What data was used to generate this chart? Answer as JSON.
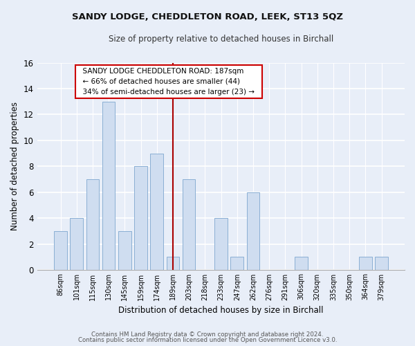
{
  "title": "SANDY LODGE, CHEDDLETON ROAD, LEEK, ST13 5QZ",
  "subtitle": "Size of property relative to detached houses in Birchall",
  "xlabel": "Distribution of detached houses by size in Birchall",
  "ylabel": "Number of detached properties",
  "footnote1": "Contains HM Land Registry data © Crown copyright and database right 2024.",
  "footnote2": "Contains public sector information licensed under the Open Government Licence v3.0.",
  "bar_labels": [
    "86sqm",
    "101sqm",
    "115sqm",
    "130sqm",
    "145sqm",
    "159sqm",
    "174sqm",
    "189sqm",
    "203sqm",
    "218sqm",
    "233sqm",
    "247sqm",
    "262sqm",
    "276sqm",
    "291sqm",
    "306sqm",
    "320sqm",
    "335sqm",
    "350sqm",
    "364sqm",
    "379sqm"
  ],
  "bar_values": [
    3,
    4,
    7,
    13,
    3,
    8,
    9,
    1,
    7,
    0,
    4,
    1,
    6,
    0,
    0,
    1,
    0,
    0,
    0,
    1,
    1
  ],
  "bar_color": "#cfddf0",
  "bar_edge_color": "#8aafd4",
  "highlight_index": 7,
  "highlight_line_color": "#aa0000",
  "ylim": [
    0,
    16
  ],
  "yticks": [
    0,
    2,
    4,
    6,
    8,
    10,
    12,
    14,
    16
  ],
  "annotation_title": "SANDY LODGE CHEDDLETON ROAD: 187sqm",
  "annotation_line1": "← 66% of detached houses are smaller (44)",
  "annotation_line2": "34% of semi-detached houses are larger (23) →",
  "annotation_box_color": "#ffffff",
  "annotation_box_edge": "#cc0000",
  "background_color": "#e8eef8",
  "grid_color": "#ffffff",
  "title_fontsize": 9.5,
  "subtitle_fontsize": 8.5
}
